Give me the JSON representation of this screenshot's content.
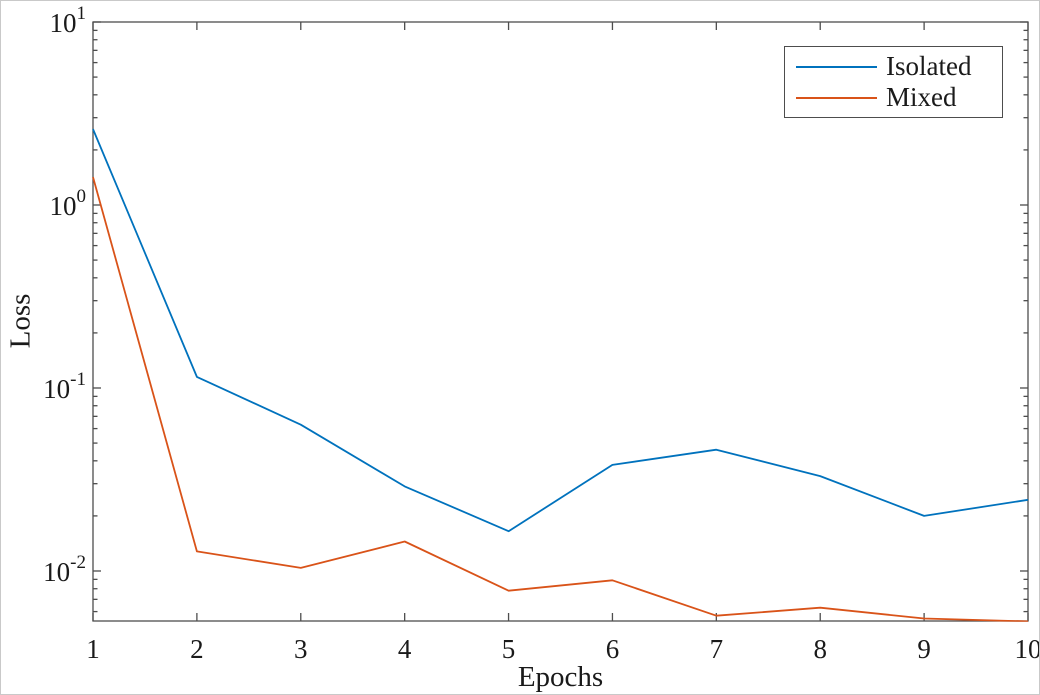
{
  "chart_data": {
    "type": "line",
    "x": [
      1,
      2,
      3,
      4,
      5,
      6,
      7,
      8,
      9,
      10
    ],
    "series": [
      {
        "name": "Isolated",
        "color": "#0072BD",
        "values": [
          2.6,
          0.115,
          0.063,
          0.029,
          0.0165,
          0.038,
          0.046,
          0.033,
          0.02,
          0.0245
        ]
      },
      {
        "name": "Mixed",
        "color": "#D95319",
        "values": [
          1.42,
          0.0128,
          0.0104,
          0.0145,
          0.0078,
          0.0089,
          0.0057,
          0.0063,
          0.0055,
          0.0053
        ]
      }
    ],
    "title": "",
    "xlabel": "Epochs",
    "ylabel": "Loss",
    "xlim": [
      1,
      10
    ],
    "ylim": [
      0.00533,
      10
    ],
    "yscale": "log",
    "x_tick_labels": [
      "1",
      "2",
      "3",
      "4",
      "5",
      "6",
      "7",
      "8",
      "9",
      "10"
    ],
    "y_tick_exponents": [
      1,
      0,
      -1,
      -2
    ],
    "y_tick_base": "10",
    "grid": false,
    "legend_position": "top-right",
    "axis_color": "#4d4d4d",
    "text_color": "#1a1a1a",
    "background_color": "#ffffff"
  }
}
